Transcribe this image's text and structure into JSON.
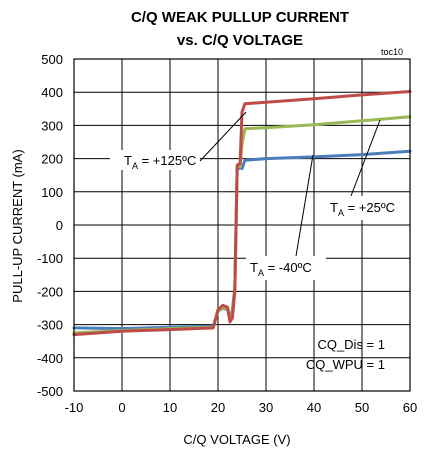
{
  "chart_data": {
    "type": "line",
    "title": "C/Q WEAK PULLUP CURRENT",
    "subtitle": "vs. C/Q VOLTAGE",
    "figure_id": "toc10",
    "xlabel": "C/Q VOLTAGE (V)",
    "ylabel": "PULL-UP CURRENT (mA)",
    "xlim": [
      -10,
      60
    ],
    "ylim": [
      -500,
      500
    ],
    "x_ticks": [
      "-10",
      "0",
      "10",
      "20",
      "30",
      "40",
      "50",
      "60"
    ],
    "y_ticks": [
      "500",
      "400",
      "300",
      "200",
      "100",
      "0",
      "-100",
      "-200",
      "-300",
      "-400",
      "-500"
    ],
    "grid": true,
    "series": [
      {
        "name": "TA = -40ºC",
        "color": "#4a7ebb",
        "points": [
          [
            -10,
            -310
          ],
          [
            0,
            -312
          ],
          [
            10,
            -308
          ],
          [
            19,
            -305
          ],
          [
            20,
            -260
          ],
          [
            21,
            -250
          ],
          [
            22,
            -255
          ],
          [
            22.5,
            -285
          ],
          [
            23,
            -255
          ],
          [
            23.5,
            -190
          ],
          [
            24,
            170
          ],
          [
            24.3,
            170
          ],
          [
            24.6,
            172
          ],
          [
            25,
            170
          ],
          [
            25.6,
            195
          ],
          [
            30,
            200
          ],
          [
            40,
            205
          ],
          [
            50,
            212
          ],
          [
            60,
            222
          ]
        ]
      },
      {
        "name": "TA = +25ºC",
        "color": "#98b954",
        "points": [
          [
            -10,
            -325
          ],
          [
            0,
            -318
          ],
          [
            10,
            -312
          ],
          [
            19,
            -308
          ],
          [
            20,
            -260
          ],
          [
            21,
            -248
          ],
          [
            22,
            -252
          ],
          [
            22.5,
            -290
          ],
          [
            23,
            -262
          ],
          [
            23.5,
            -200
          ],
          [
            24,
            175
          ],
          [
            24.6,
            175
          ],
          [
            25,
            240
          ],
          [
            25.6,
            290
          ],
          [
            30,
            293
          ],
          [
            40,
            302
          ],
          [
            50,
            314
          ],
          [
            60,
            326
          ]
        ]
      },
      {
        "name": "TA = +125ºC",
        "color": "#be4b48",
        "points": [
          [
            -10,
            -330
          ],
          [
            0,
            -320
          ],
          [
            10,
            -315
          ],
          [
            19,
            -310
          ],
          [
            20,
            -255
          ],
          [
            21,
            -242
          ],
          [
            22,
            -248
          ],
          [
            22.5,
            -292
          ],
          [
            23,
            -280
          ],
          [
            23.5,
            -200
          ],
          [
            24,
            180
          ],
          [
            24.6,
            185
          ],
          [
            25,
            340
          ],
          [
            25.6,
            365
          ],
          [
            30,
            370
          ],
          [
            40,
            380
          ],
          [
            50,
            392
          ],
          [
            60,
            402
          ]
        ]
      }
    ],
    "annotations": [
      {
        "main": "T",
        "sub": "A",
        "rest": " = +125ºC"
      },
      {
        "main": "T",
        "sub": "A",
        "rest": " = +25ºC"
      },
      {
        "main": "T",
        "sub": "A",
        "rest": " = -40ºC"
      },
      {
        "line1": "CQ_Dis = 1",
        "line2": "CQ_WPU = 1"
      }
    ]
  }
}
